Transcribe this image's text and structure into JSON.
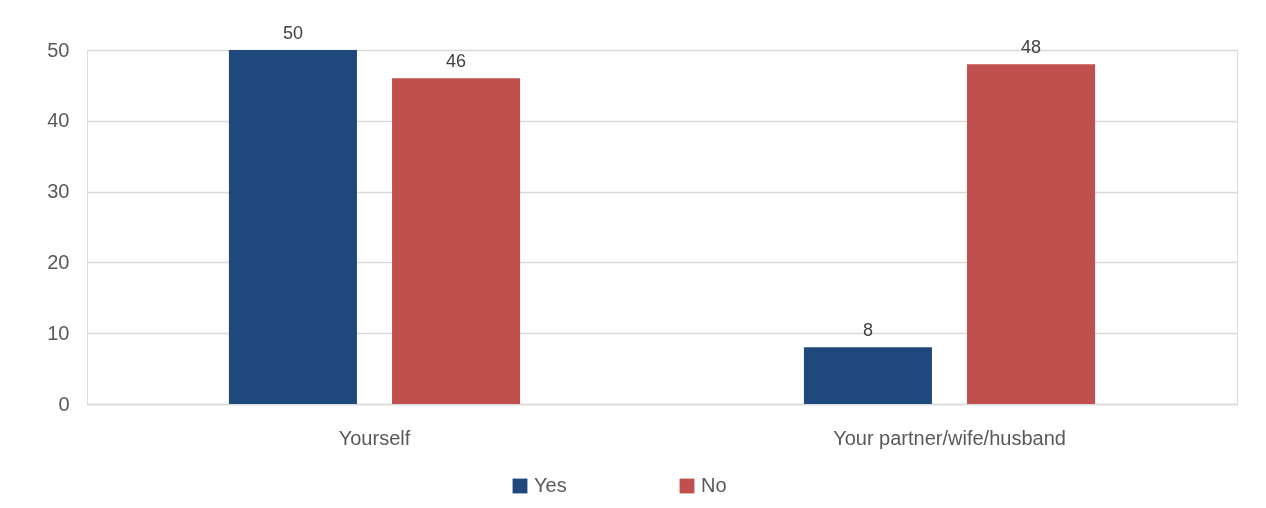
{
  "chart_data": {
    "type": "bar",
    "categories": [
      "Yourself",
      "Your partner/wife/husband"
    ],
    "series": [
      {
        "name": "Yes",
        "color": "#1f497d",
        "values": [
          50,
          8
        ]
      },
      {
        "name": "No",
        "color": "#c0504d",
        "values": [
          46,
          48
        ]
      }
    ],
    "ylim": [
      0,
      50
    ],
    "yticks": [
      0,
      10,
      20,
      30,
      40,
      50
    ],
    "grid": "y",
    "legend": "bottom",
    "data_labels": true
  }
}
